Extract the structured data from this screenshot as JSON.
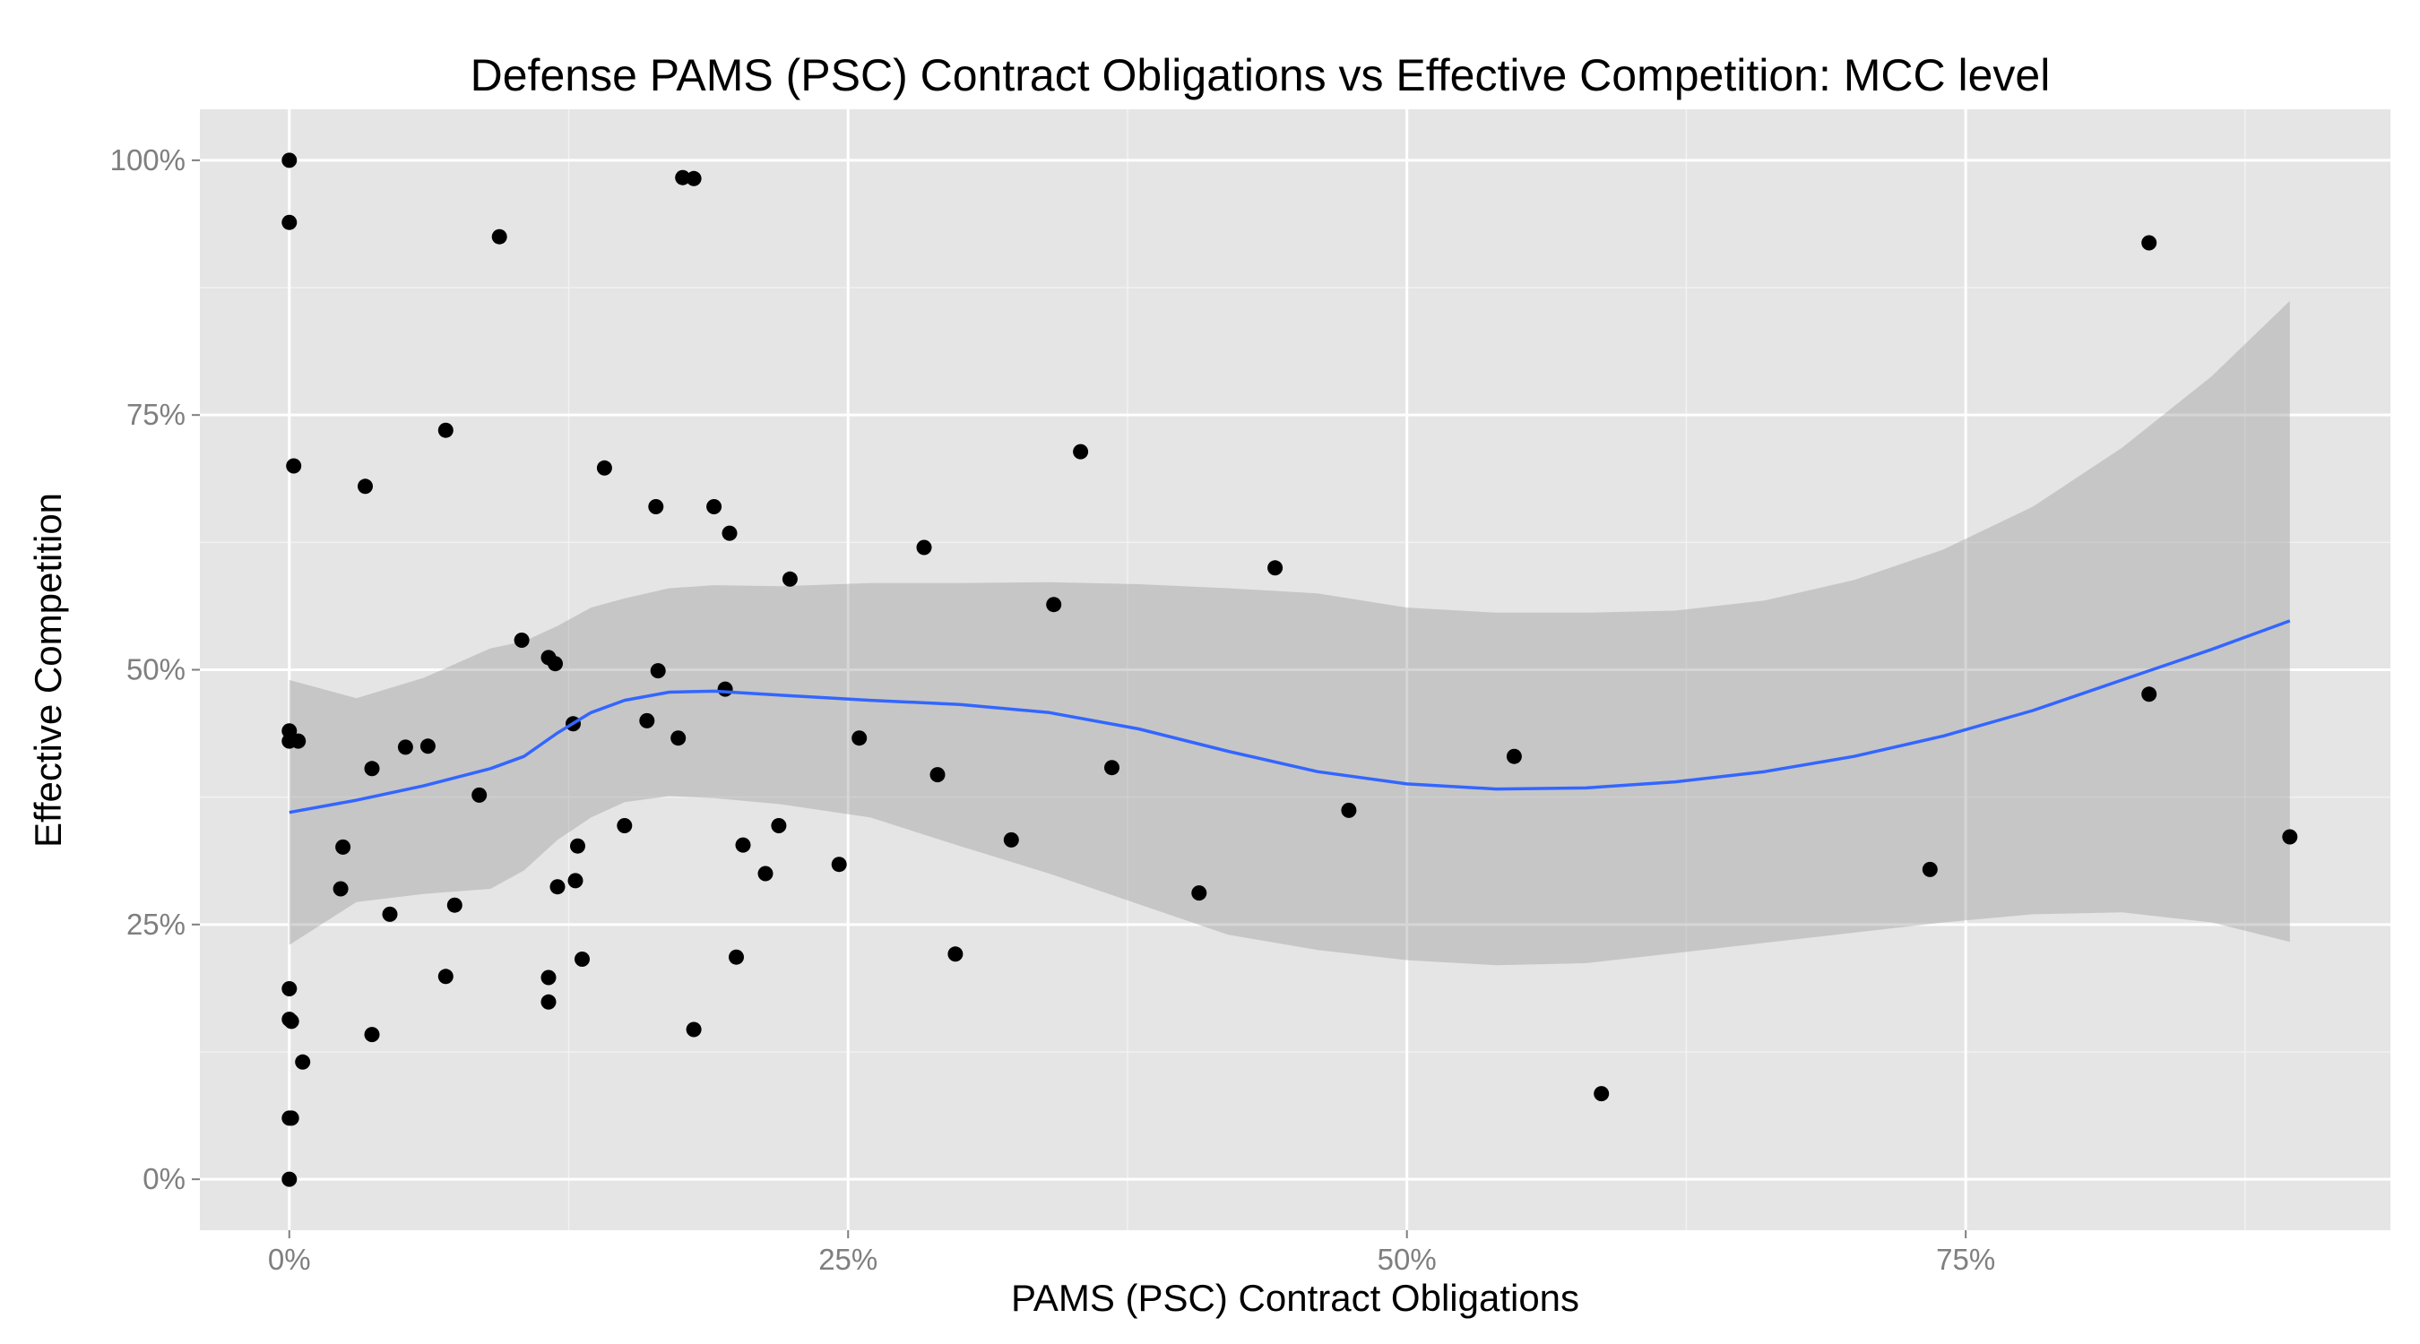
{
  "chart_data": {
    "type": "scatter",
    "title": "Defense PAMS (PSC) Contract Obligations vs Effective Competition: MCC level",
    "xlabel": "PAMS (PSC) Contract Obligations",
    "ylabel": "Effective Competition",
    "xlim": [
      -0.04,
      0.94
    ],
    "ylim": [
      -0.05,
      1.05
    ],
    "x_ticks": [
      {
        "value": 0,
        "label": "0%"
      },
      {
        "value": 0.25,
        "label": "25%"
      },
      {
        "value": 0.5,
        "label": "50%"
      },
      {
        "value": 0.75,
        "label": "75%"
      }
    ],
    "y_ticks": [
      {
        "value": 0,
        "label": "0%"
      },
      {
        "value": 0.25,
        "label": "25%"
      },
      {
        "value": 0.5,
        "label": "50%"
      },
      {
        "value": 0.75,
        "label": "75%"
      },
      {
        "value": 1,
        "label": "100%"
      }
    ],
    "grid": true,
    "colors": {
      "panel": "#e5e5e5",
      "grid_major": "#ffffff",
      "grid_minor": "#f2f2f2",
      "points": "#000000",
      "smooth_line": "#3366ff",
      "confidence_band": "#999999"
    },
    "points": [
      {
        "x": 0.0,
        "y": 1.0
      },
      {
        "x": 0.0,
        "y": 0.939
      },
      {
        "x": 0.002,
        "y": 0.7
      },
      {
        "x": 0.0,
        "y": 0.44
      },
      {
        "x": 0.0,
        "y": 0.43
      },
      {
        "x": 0.004,
        "y": 0.43
      },
      {
        "x": 0.0,
        "y": 0.187
      },
      {
        "x": 0.0,
        "y": 0.157
      },
      {
        "x": 0.001,
        "y": 0.155
      },
      {
        "x": 0.006,
        "y": 0.115
      },
      {
        "x": 0.0,
        "y": 0.06
      },
      {
        "x": 0.001,
        "y": 0.06
      },
      {
        "x": 0.0,
        "y": 0.0
      },
      {
        "x": 0.023,
        "y": 0.285
      },
      {
        "x": 0.024,
        "y": 0.326
      },
      {
        "x": 0.034,
        "y": 0.68
      },
      {
        "x": 0.037,
        "y": 0.403
      },
      {
        "x": 0.037,
        "y": 0.142
      },
      {
        "x": 0.045,
        "y": 0.26
      },
      {
        "x": 0.052,
        "y": 0.424
      },
      {
        "x": 0.062,
        "y": 0.425
      },
      {
        "x": 0.07,
        "y": 0.735
      },
      {
        "x": 0.07,
        "y": 0.199
      },
      {
        "x": 0.074,
        "y": 0.269
      },
      {
        "x": 0.085,
        "y": 0.377
      },
      {
        "x": 0.094,
        "y": 0.925
      },
      {
        "x": 0.104,
        "y": 0.529
      },
      {
        "x": 0.116,
        "y": 0.512
      },
      {
        "x": 0.119,
        "y": 0.506
      },
      {
        "x": 0.116,
        "y": 0.198
      },
      {
        "x": 0.116,
        "y": 0.174
      },
      {
        "x": 0.12,
        "y": 0.287
      },
      {
        "x": 0.127,
        "y": 0.447
      },
      {
        "x": 0.128,
        "y": 0.293
      },
      {
        "x": 0.129,
        "y": 0.327
      },
      {
        "x": 0.131,
        "y": 0.216
      },
      {
        "x": 0.141,
        "y": 0.698
      },
      {
        "x": 0.15,
        "y": 0.347
      },
      {
        "x": 0.16,
        "y": 0.45
      },
      {
        "x": 0.164,
        "y": 0.66
      },
      {
        "x": 0.165,
        "y": 0.499
      },
      {
        "x": 0.174,
        "y": 0.433
      },
      {
        "x": 0.176,
        "y": 0.983
      },
      {
        "x": 0.181,
        "y": 0.982
      },
      {
        "x": 0.181,
        "y": 0.147
      },
      {
        "x": 0.19,
        "y": 0.66
      },
      {
        "x": 0.195,
        "y": 0.481
      },
      {
        "x": 0.197,
        "y": 0.634
      },
      {
        "x": 0.2,
        "y": 0.218
      },
      {
        "x": 0.203,
        "y": 0.328
      },
      {
        "x": 0.213,
        "y": 0.3
      },
      {
        "x": 0.219,
        "y": 0.347
      },
      {
        "x": 0.224,
        "y": 0.589
      },
      {
        "x": 0.246,
        "y": 0.309
      },
      {
        "x": 0.255,
        "y": 0.433
      },
      {
        "x": 0.284,
        "y": 0.62
      },
      {
        "x": 0.29,
        "y": 0.397
      },
      {
        "x": 0.298,
        "y": 0.221
      },
      {
        "x": 0.323,
        "y": 0.333
      },
      {
        "x": 0.342,
        "y": 0.564
      },
      {
        "x": 0.354,
        "y": 0.714
      },
      {
        "x": 0.368,
        "y": 0.404
      },
      {
        "x": 0.407,
        "y": 0.281
      },
      {
        "x": 0.441,
        "y": 0.6
      },
      {
        "x": 0.474,
        "y": 0.362
      },
      {
        "x": 0.548,
        "y": 0.415
      },
      {
        "x": 0.587,
        "y": 0.084
      },
      {
        "x": 0.734,
        "y": 0.304
      },
      {
        "x": 0.832,
        "y": 0.919
      },
      {
        "x": 0.832,
        "y": 0.476
      },
      {
        "x": 0.895,
        "y": 0.336
      }
    ],
    "smooth": {
      "method": "loess",
      "x": [
        0.0,
        0.03,
        0.06,
        0.09,
        0.105,
        0.12,
        0.135,
        0.15,
        0.17,
        0.19,
        0.22,
        0.26,
        0.3,
        0.34,
        0.38,
        0.42,
        0.46,
        0.5,
        0.54,
        0.58,
        0.62,
        0.66,
        0.7,
        0.74,
        0.78,
        0.82,
        0.86,
        0.895
      ],
      "y": [
        0.36,
        0.372,
        0.386,
        0.403,
        0.415,
        0.438,
        0.458,
        0.47,
        0.478,
        0.479,
        0.475,
        0.47,
        0.466,
        0.458,
        0.442,
        0.42,
        0.4,
        0.388,
        0.383,
        0.384,
        0.39,
        0.4,
        0.415,
        0.435,
        0.46,
        0.49,
        0.52,
        0.548
      ],
      "lower": [
        0.23,
        0.272,
        0.28,
        0.285,
        0.303,
        0.333,
        0.355,
        0.37,
        0.376,
        0.374,
        0.368,
        0.355,
        0.327,
        0.3,
        0.27,
        0.24,
        0.225,
        0.215,
        0.21,
        0.212,
        0.222,
        0.232,
        0.242,
        0.252,
        0.26,
        0.262,
        0.252,
        0.233
      ],
      "upper": [
        0.49,
        0.472,
        0.492,
        0.521,
        0.528,
        0.543,
        0.561,
        0.57,
        0.58,
        0.583,
        0.582,
        0.585,
        0.585,
        0.586,
        0.584,
        0.58,
        0.575,
        0.561,
        0.556,
        0.556,
        0.558,
        0.568,
        0.588,
        0.618,
        0.66,
        0.718,
        0.788,
        0.862
      ]
    }
  }
}
